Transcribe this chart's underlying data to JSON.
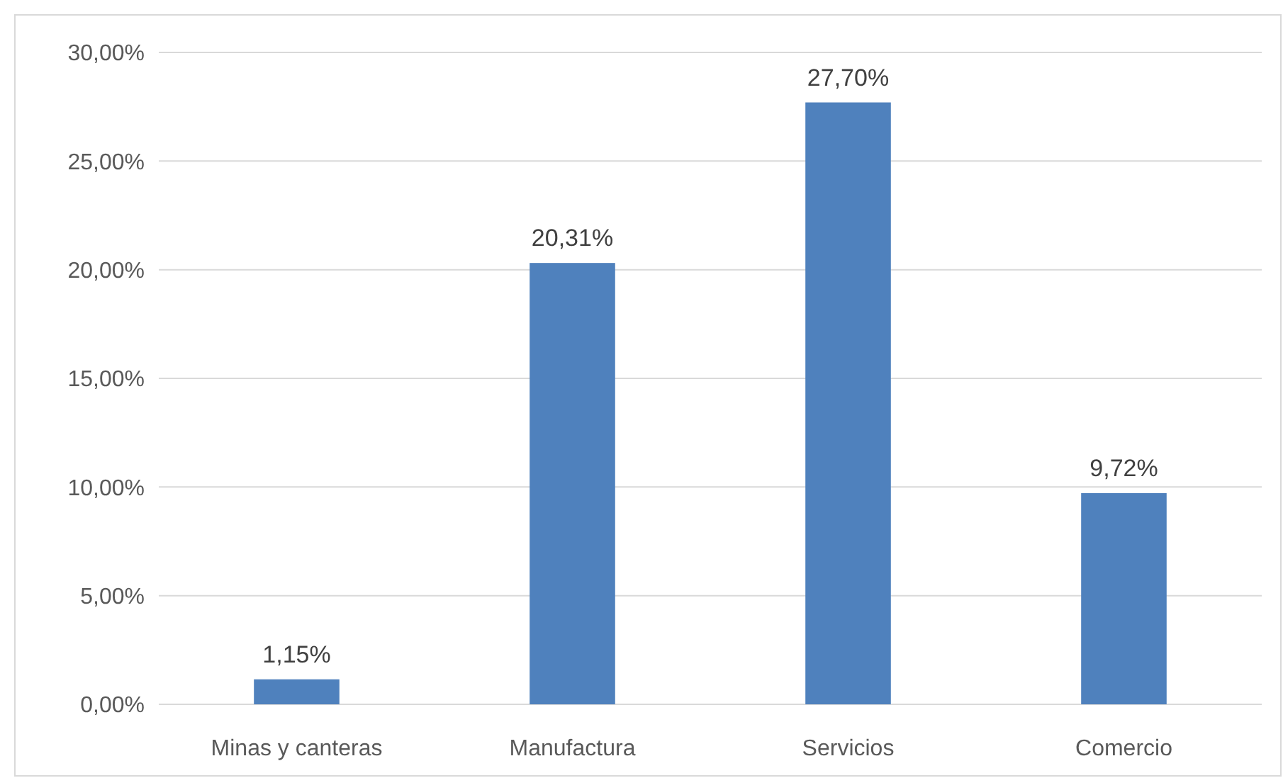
{
  "chart_data": {
    "type": "bar",
    "categories": [
      "Minas y canteras",
      "Manufactura",
      "Servicios",
      "Comercio"
    ],
    "values": [
      1.15,
      20.31,
      27.7,
      9.72
    ],
    "color": "#4f81bd",
    "value_labels": [
      "1,15%",
      "20,31%",
      "27,70%",
      "9,72%"
    ],
    "ylim": [
      0,
      30
    ],
    "yticks": [
      {
        "value": 0,
        "label": "0,00%"
      },
      {
        "value": 5,
        "label": "5,00%"
      },
      {
        "value": 10,
        "label": "10,00%"
      },
      {
        "value": 15,
        "label": "15,00%"
      },
      {
        "value": 20,
        "label": "20,00%"
      },
      {
        "value": 25,
        "label": "25,00%"
      },
      {
        "value": 30,
        "label": "30,00%"
      }
    ],
    "grid": "y"
  }
}
